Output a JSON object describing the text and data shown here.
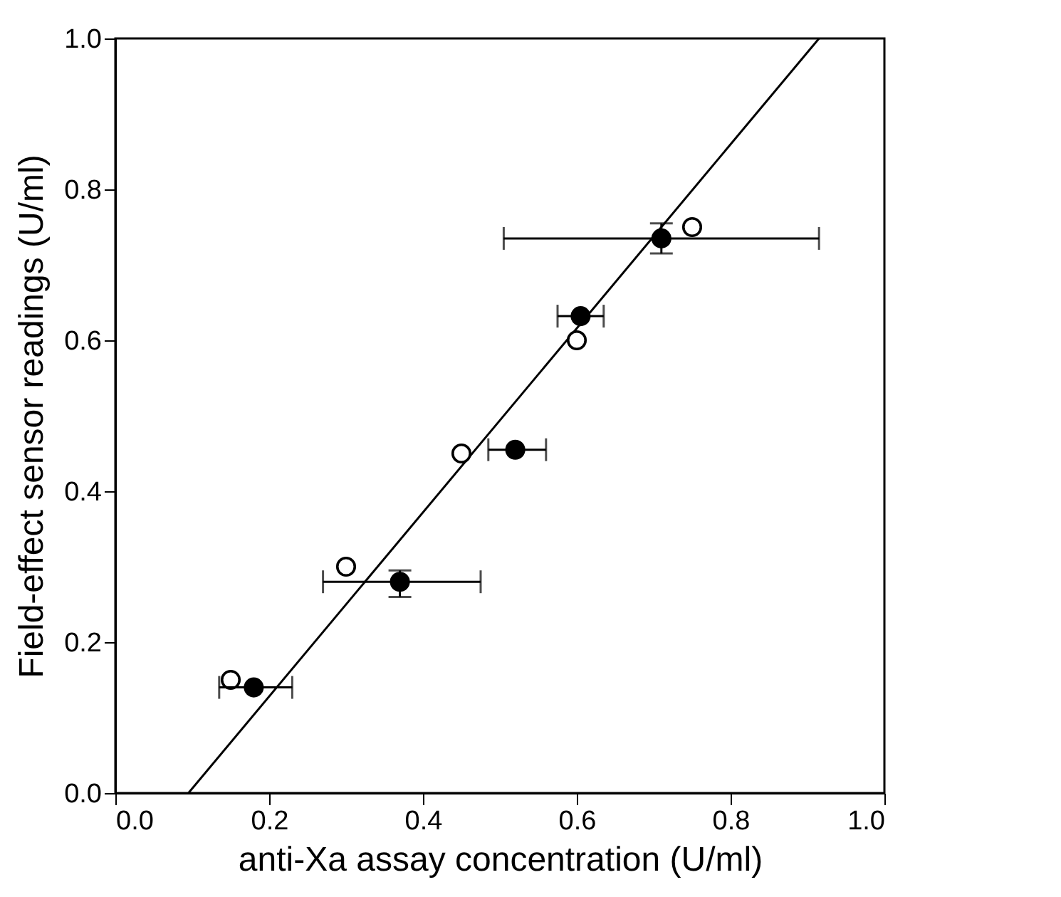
{
  "chart_data": {
    "type": "scatter",
    "xlabel": "anti-Xa assay concentration (U/ml)",
    "ylabel": "Field-effect sensor readings (U/ml)",
    "xlim": [
      0.0,
      1.0
    ],
    "ylim": [
      0.0,
      1.0
    ],
    "xticks": [
      {
        "value": 0,
        "label": "0.0"
      },
      0.2,
      0.4,
      0.6,
      0.8,
      {
        "value": 1,
        "label": "1.0"
      }
    ],
    "yticks": [
      {
        "value": 0,
        "label": "0.0"
      },
      0.2,
      0.4,
      0.6,
      0.8,
      {
        "value": 1,
        "label": "1.0"
      }
    ],
    "grid": false,
    "marker": "circle",
    "series": [
      {
        "type": "line",
        "color": "#000000",
        "x": [
          0.095,
          0.915
        ],
        "values": [
          0.0,
          1.0
        ],
        "line_style": "solid",
        "marker": "none"
      },
      {
        "color": "#ffffff",
        "x": [
          0.15,
          0.3,
          0.45,
          0.6,
          0.75
        ],
        "values": [
          0.15,
          0.3,
          0.45,
          0.6,
          0.75
        ]
      },
      {
        "color": "#000000",
        "x": [
          0.18,
          0.37,
          0.52,
          0.605,
          0.71
        ],
        "values": [
          0.14,
          0.28,
          0.455,
          0.632,
          0.735
        ],
        "errors": [
          null,
          [
            0.26,
            0.295
          ],
          null,
          null,
          [
            0.715,
            0.755
          ]
        ],
        "xerrors": [
          [
            0.135,
            0.23
          ],
          [
            0.27,
            0.475
          ],
          [
            0.485,
            0.56
          ],
          [
            0.575,
            0.635
          ],
          [
            0.505,
            0.915
          ]
        ]
      }
    ]
  }
}
